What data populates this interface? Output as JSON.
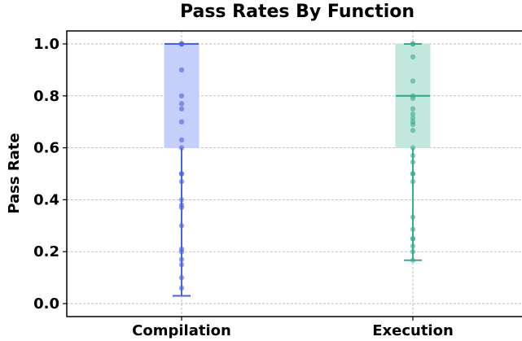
{
  "chart_data": {
    "type": "box",
    "title": "Pass Rates By Function",
    "xlabel": "",
    "ylabel": "Pass Rate",
    "ylim": [
      -0.05,
      1.05
    ],
    "yticks": [
      "0.0",
      "0.2",
      "0.4",
      "0.6",
      "0.8",
      "1.0"
    ],
    "grid": true,
    "categories": [
      "Compilation",
      "Execution"
    ],
    "series": [
      {
        "category": "Compilation",
        "color": "#4a63e0",
        "fill": "#c6cff9",
        "min": 0.03,
        "q1": 0.6,
        "median": 1.0,
        "q3": 1.0,
        "max": 1.0,
        "points": [
          1.0,
          1.0,
          1.0,
          0.9,
          0.8,
          0.77,
          0.75,
          0.7,
          0.63,
          0.6,
          0.5,
          0.5,
          0.47,
          0.4,
          0.38,
          0.37,
          0.3,
          0.21,
          0.2,
          0.17,
          0.15,
          0.1,
          0.06
        ]
      },
      {
        "category": "Execution",
        "color": "#3aaa90",
        "fill": "#c2e8dd",
        "min": 0.167,
        "q1": 0.6,
        "median": 0.8,
        "q3": 1.0,
        "max": 1.0,
        "points": [
          1.0,
          1.0,
          0.95,
          0.857,
          0.8,
          0.79,
          0.75,
          0.73,
          0.714,
          0.7,
          0.69,
          0.667,
          0.6,
          0.57,
          0.545,
          0.5,
          0.5,
          0.47,
          0.333,
          0.286,
          0.25,
          0.25,
          0.222,
          0.2,
          0.167
        ]
      }
    ]
  }
}
